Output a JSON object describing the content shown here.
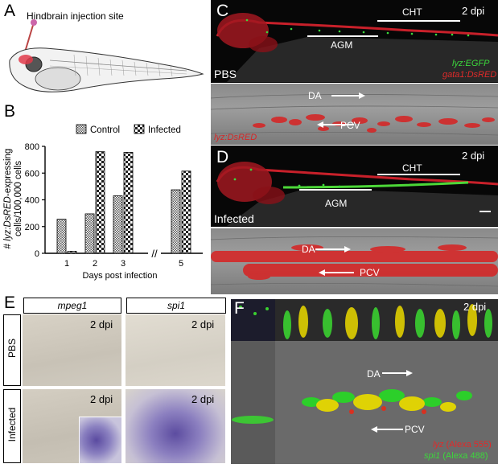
{
  "panels": {
    "A": {
      "letter": "A",
      "caption": "Hindbrain injection site"
    },
    "B": {
      "letter": "B"
    },
    "C": {
      "letter": "C",
      "time": "2 dpi",
      "cht": "CHT",
      "agm": "AGM",
      "condition": "PBS",
      "legend_green": "lyz:EGFP",
      "legend_red": "gata1:DsRED",
      "zoom_da": "DA",
      "zoom_pcv": "PCV",
      "zoom_legend": "lyz:DsRED"
    },
    "D": {
      "letter": "D",
      "time": "2 dpi",
      "cht": "CHT",
      "agm": "AGM",
      "condition": "Infected",
      "zoom_da": "DA",
      "zoom_pcv": "PCV"
    },
    "E": {
      "letter": "E",
      "col1": "mpeg1",
      "col2": "spi1",
      "row1": "PBS",
      "row2": "Infected",
      "time": "2 dpi"
    },
    "F": {
      "letter": "F",
      "time": "2 dpi",
      "da": "DA",
      "pcv": "PCV",
      "legend_red": "lyz",
      "legend_red_suffix": "(Alexa 555)",
      "legend_green": "spi1",
      "legend_green_suffix": "(Alexa 488)"
    }
  },
  "chart_data": {
    "type": "bar",
    "ylabel_parts": [
      "# ",
      "lyz:DsRED",
      "-expressing",
      "cells/100,000 cells"
    ],
    "xlabel": "Days post infection",
    "categories": [
      "1",
      "2",
      "3",
      "5"
    ],
    "ylim": [
      0,
      800
    ],
    "yticks": [
      0,
      200,
      400,
      600,
      800
    ],
    "axis_break": "//",
    "series": [
      {
        "name": "Control",
        "values": [
          255,
          295,
          430,
          475
        ]
      },
      {
        "name": "Infected",
        "values": [
          15,
          760,
          755,
          615
        ]
      }
    ]
  }
}
